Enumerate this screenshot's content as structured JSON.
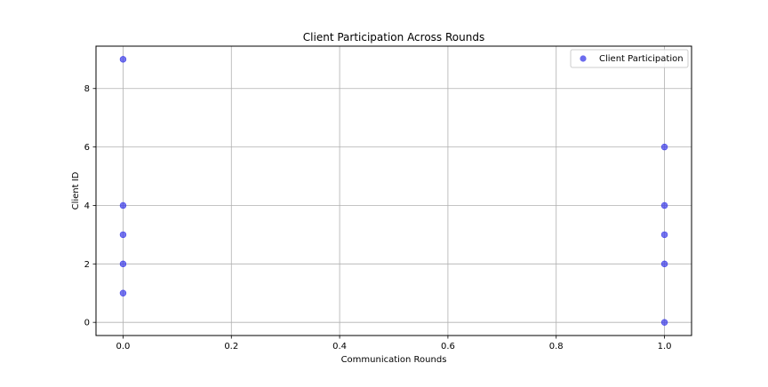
{
  "chart_data": {
    "type": "scatter",
    "title": "Client Participation Across Rounds",
    "xlabel": "Communication Rounds",
    "ylabel": "Client ID",
    "xlim": [
      -0.05,
      1.05
    ],
    "ylim": [
      -0.45,
      9.45
    ],
    "xticks": [
      "0.0",
      "0.2",
      "0.4",
      "0.6",
      "0.8",
      "1.0"
    ],
    "xtick_values": [
      0.0,
      0.2,
      0.4,
      0.6,
      0.8,
      1.0
    ],
    "yticks": [
      "0",
      "2",
      "4",
      "6",
      "8"
    ],
    "ytick_values": [
      0,
      2,
      4,
      6,
      8
    ],
    "grid": true,
    "legend_position": "top-right",
    "series": [
      {
        "name": "Client Participation",
        "color": "#3b3be8",
        "points": [
          {
            "x": 0.0,
            "y": 9
          },
          {
            "x": 0.0,
            "y": 4
          },
          {
            "x": 0.0,
            "y": 3
          },
          {
            "x": 0.0,
            "y": 2
          },
          {
            "x": 0.0,
            "y": 1
          },
          {
            "x": 1.0,
            "y": 6
          },
          {
            "x": 1.0,
            "y": 4
          },
          {
            "x": 1.0,
            "y": 3
          },
          {
            "x": 1.0,
            "y": 2
          },
          {
            "x": 1.0,
            "y": 0
          }
        ]
      }
    ]
  }
}
